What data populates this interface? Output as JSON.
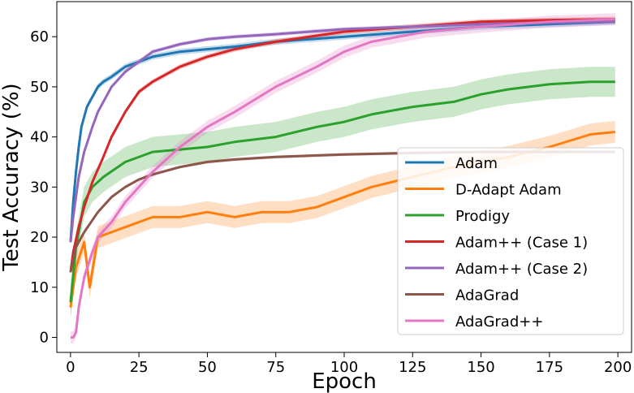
{
  "chart_data": {
    "type": "line",
    "xlabel": "Epoch",
    "ylabel": "Test Accuracy (%)",
    "xlim": [
      -5,
      205
    ],
    "ylim": [
      -3,
      67
    ],
    "xticks": [
      0,
      25,
      50,
      75,
      100,
      125,
      150,
      175,
      200
    ],
    "yticks": [
      0,
      10,
      20,
      30,
      40,
      50,
      60
    ],
    "grid": false,
    "legend_position": "lower-right",
    "series": [
      {
        "name": "Adam",
        "color": "#1f77b4",
        "x": [
          0,
          1,
          2,
          3,
          4,
          5,
          6,
          8,
          10,
          12,
          15,
          20,
          25,
          30,
          40,
          50,
          60,
          75,
          100,
          125,
          150,
          175,
          199
        ],
        "values": [
          19,
          27,
          33,
          38,
          42,
          44,
          46,
          48,
          50,
          51,
          52,
          54,
          55,
          56,
          57,
          57.5,
          58,
          59,
          60,
          61,
          62,
          62.5,
          63
        ],
        "band": 0.6
      },
      {
        "name": "D-Adapt Adam",
        "color": "#ff7f0e",
        "x": [
          0,
          2,
          5,
          7,
          10,
          15,
          20,
          30,
          40,
          50,
          60,
          70,
          75,
          80,
          90,
          100,
          110,
          125,
          140,
          150,
          160,
          175,
          190,
          199
        ],
        "values": [
          6,
          14,
          19,
          10,
          20,
          21,
          22,
          24,
          24,
          25,
          24,
          25,
          25,
          25,
          26,
          28,
          30,
          32,
          34,
          35,
          36,
          38,
          40.5,
          41
        ],
        "band": 2.2
      },
      {
        "name": "Prodigy",
        "color": "#2ca02c",
        "x": [
          0,
          2,
          5,
          8,
          12,
          20,
          30,
          40,
          50,
          60,
          75,
          90,
          100,
          110,
          125,
          140,
          150,
          160,
          175,
          190,
          199
        ],
        "values": [
          7,
          18,
          27,
          30,
          32,
          35,
          37,
          37.5,
          38,
          39,
          40,
          42,
          43,
          44.5,
          46,
          47,
          48.5,
          49.5,
          50.5,
          51,
          51
        ],
        "band": 3
      },
      {
        "name": "Adam++ (Case 1)",
        "color": "#d62728",
        "x": [
          0,
          1,
          3,
          5,
          8,
          12,
          15,
          20,
          25,
          30,
          40,
          50,
          60,
          75,
          100,
          125,
          150,
          175,
          199
        ],
        "values": [
          13,
          17,
          22,
          26,
          31,
          36,
          40,
          45,
          49,
          51,
          54,
          56,
          57.5,
          59,
          61,
          62,
          63,
          63.3,
          63.5
        ],
        "band": 0.5
      },
      {
        "name": "Adam++ (Case 2)",
        "color": "#9467bd",
        "x": [
          0,
          1,
          2,
          3,
          5,
          8,
          10,
          15,
          20,
          25,
          30,
          40,
          50,
          60,
          75,
          100,
          125,
          150,
          175,
          199
        ],
        "values": [
          19,
          24,
          28,
          32,
          37,
          42,
          45,
          50,
          53,
          55,
          57,
          58.5,
          59.5,
          60,
          60.5,
          61.5,
          62,
          62.5,
          62.8,
          63
        ],
        "band": 0.4
      },
      {
        "name": "AdaGrad",
        "color": "#8c564b",
        "x": [
          0,
          2,
          5,
          10,
          15,
          20,
          25,
          30,
          40,
          50,
          60,
          75,
          100,
          125,
          150,
          175,
          199
        ],
        "values": [
          13,
          18,
          21,
          25,
          28,
          30,
          31.5,
          32.5,
          34,
          35,
          35.5,
          36,
          36.5,
          36.8,
          37,
          37,
          37
        ],
        "band": 0.3
      },
      {
        "name": "AdaGrad++",
        "color": "#e377c2",
        "x": [
          0,
          1,
          2,
          3,
          5,
          8,
          10,
          15,
          20,
          25,
          30,
          40,
          50,
          60,
          75,
          90,
          100,
          110,
          120,
          130,
          150,
          175,
          199
        ],
        "values": [
          0,
          0,
          1,
          6,
          12,
          17,
          20,
          23,
          27,
          30,
          33,
          38,
          42,
          45,
          50,
          54,
          57,
          59,
          60,
          61,
          62,
          63,
          63.5
        ],
        "band": 1.2
      }
    ]
  }
}
